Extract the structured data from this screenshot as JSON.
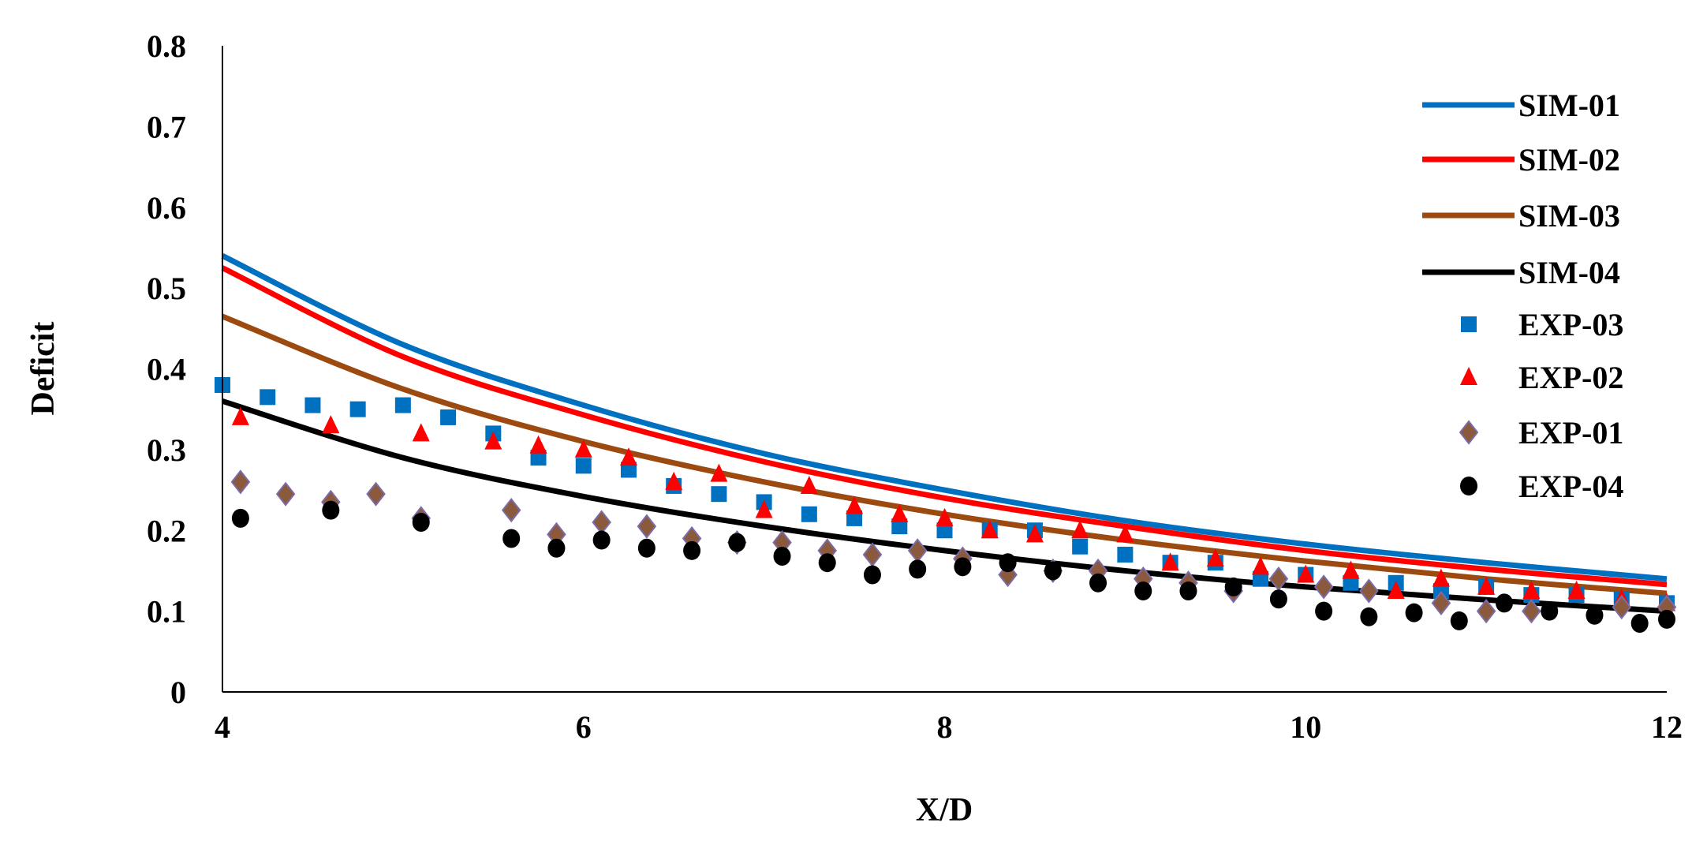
{
  "chart_data": {
    "type": "scatter",
    "title": "",
    "xlabel": "X/D",
    "ylabel": "Deficit",
    "xlim": [
      4,
      12
    ],
    "ylim": [
      0,
      0.8
    ],
    "xticks": [
      4,
      6,
      8,
      10,
      12
    ],
    "yticks": [
      0,
      0.1,
      0.2,
      0.3,
      0.4,
      0.5,
      0.6,
      0.7,
      0.8
    ],
    "xtick_labels": [
      "4",
      "6",
      "8",
      "10",
      "12"
    ],
    "ytick_labels": [
      "0",
      "0.1",
      "0.2",
      "0.3",
      "0.4",
      "0.5",
      "0.6",
      "0.7",
      "0.8"
    ],
    "grid": false,
    "legend_position": "right",
    "series": [
      {
        "name": "SIM-01",
        "kind": "line",
        "color": "#0070C0",
        "x": [
          4,
          5,
          6,
          7,
          8,
          9,
          10,
          11,
          12
        ],
        "y": [
          0.54,
          0.43,
          0.355,
          0.295,
          0.25,
          0.212,
          0.183,
          0.16,
          0.14
        ]
      },
      {
        "name": "SIM-02",
        "kind": "line",
        "color": "#FF0000",
        "x": [
          4,
          5,
          6,
          7,
          8,
          9,
          10,
          11,
          12
        ],
        "y": [
          0.525,
          0.415,
          0.343,
          0.285,
          0.24,
          0.205,
          0.175,
          0.152,
          0.133
        ]
      },
      {
        "name": "SIM-03",
        "kind": "line",
        "color": "#9C4A10",
        "x": [
          4,
          5,
          6,
          7,
          8,
          9,
          10,
          11,
          12
        ],
        "y": [
          0.465,
          0.375,
          0.31,
          0.26,
          0.22,
          0.188,
          0.162,
          0.14,
          0.122
        ]
      },
      {
        "name": "SIM-04",
        "kind": "line",
        "color": "#000000",
        "x": [
          4,
          5,
          6,
          7,
          8,
          9,
          10,
          11,
          12
        ],
        "y": [
          0.36,
          0.29,
          0.242,
          0.205,
          0.175,
          0.15,
          0.13,
          0.114,
          0.1
        ]
      },
      {
        "name": "EXP-03",
        "kind": "square",
        "color": "#0070C0",
        "x": [
          4,
          4.25,
          4.5,
          4.75,
          5,
          5.25,
          5.5,
          5.75,
          6,
          6.25,
          6.5,
          6.75,
          7,
          7.25,
          7.5,
          7.75,
          8,
          8.25,
          8.5,
          8.75,
          9,
          9.25,
          9.5,
          9.75,
          10,
          10.25,
          10.5,
          10.75,
          11,
          11.25,
          11.5,
          11.75,
          12
        ],
        "y": [
          0.38,
          0.365,
          0.355,
          0.35,
          0.355,
          0.34,
          0.32,
          0.29,
          0.28,
          0.275,
          0.255,
          0.245,
          0.235,
          0.22,
          0.215,
          0.205,
          0.2,
          0.2,
          0.2,
          0.18,
          0.17,
          0.16,
          0.16,
          0.14,
          0.145,
          0.135,
          0.135,
          0.125,
          0.13,
          0.12,
          0.12,
          0.115,
          0.11
        ]
      },
      {
        "name": "EXP-02",
        "kind": "triangle",
        "color": "#FF0000",
        "x": [
          4.1,
          4.6,
          5.1,
          5.5,
          5.75,
          6,
          6.25,
          6.5,
          6.75,
          7,
          7.25,
          7.5,
          7.75,
          8,
          8.25,
          8.5,
          8.75,
          9,
          9.25,
          9.5,
          9.75,
          10,
          10.25,
          10.5,
          10.75,
          11,
          11.25,
          11.5,
          11.75,
          12
        ],
        "y": [
          0.34,
          0.33,
          0.32,
          0.31,
          0.305,
          0.3,
          0.29,
          0.26,
          0.27,
          0.225,
          0.255,
          0.23,
          0.22,
          0.215,
          0.2,
          0.195,
          0.2,
          0.195,
          0.16,
          0.165,
          0.155,
          0.145,
          0.15,
          0.125,
          0.14,
          0.13,
          0.125,
          0.125,
          0.115,
          0.11
        ]
      },
      {
        "name": "EXP-01",
        "kind": "diamond",
        "color": "#8B5A3C",
        "x": [
          4.1,
          4.35,
          4.6,
          4.85,
          5.1,
          5.6,
          5.85,
          6.1,
          6.35,
          6.6,
          6.85,
          7.1,
          7.35,
          7.6,
          7.85,
          8.1,
          8.35,
          8.6,
          8.85,
          9.1,
          9.35,
          9.6,
          9.85,
          10.1,
          10.35,
          10.75,
          11,
          11.25,
          11.75,
          12
        ],
        "y": [
          0.26,
          0.245,
          0.235,
          0.245,
          0.215,
          0.225,
          0.195,
          0.21,
          0.205,
          0.19,
          0.185,
          0.185,
          0.175,
          0.17,
          0.175,
          0.165,
          0.145,
          0.15,
          0.15,
          0.14,
          0.135,
          0.125,
          0.14,
          0.13,
          0.125,
          0.11,
          0.1,
          0.1,
          0.105,
          0.105
        ]
      },
      {
        "name": "EXP-04",
        "kind": "circle",
        "color": "#000000",
        "x": [
          4.1,
          4.6,
          5.1,
          5.6,
          5.85,
          6.1,
          6.35,
          6.6,
          6.85,
          7.1,
          7.35,
          7.6,
          7.85,
          8.1,
          8.35,
          8.6,
          8.85,
          9.1,
          9.35,
          9.6,
          9.85,
          10.1,
          10.35,
          10.6,
          10.85,
          11.1,
          11.35,
          11.6,
          11.85,
          12
        ],
        "y": [
          0.215,
          0.225,
          0.21,
          0.19,
          0.178,
          0.188,
          0.178,
          0.175,
          0.185,
          0.168,
          0.16,
          0.145,
          0.152,
          0.155,
          0.16,
          0.15,
          0.135,
          0.125,
          0.125,
          0.13,
          0.115,
          0.1,
          0.093,
          0.098,
          0.088,
          0.11,
          0.1,
          0.095,
          0.085,
          0.09
        ]
      }
    ]
  }
}
